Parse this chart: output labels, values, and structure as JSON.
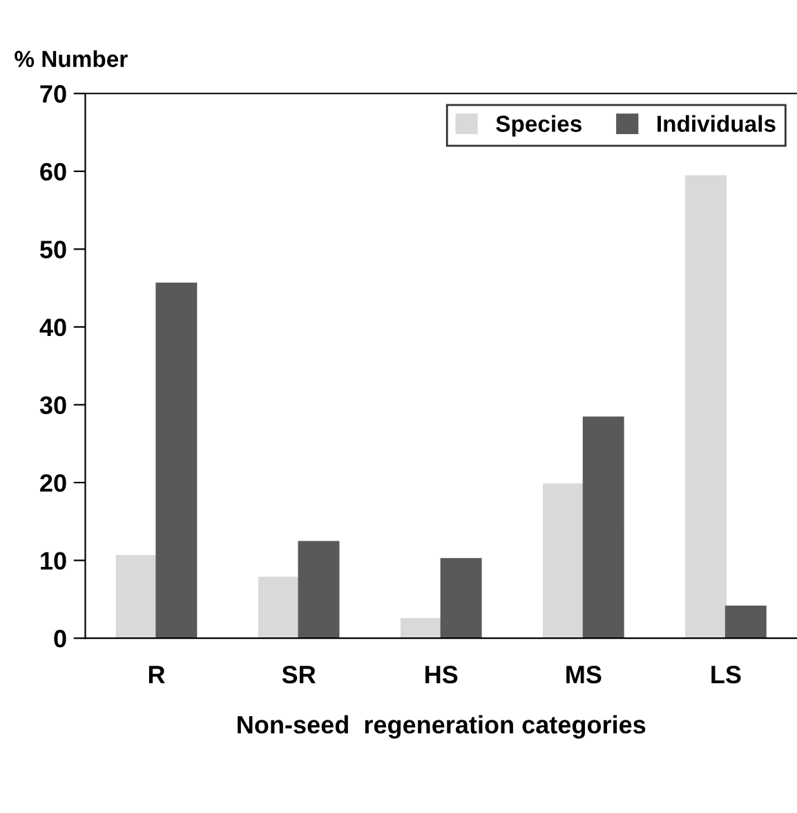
{
  "chart_data": {
    "type": "bar",
    "ylabel": "% Number",
    "xlabel": "Non-seed  regeneration categories",
    "categories": [
      "R",
      "SR",
      "HS",
      "MS",
      "LS"
    ],
    "series": [
      {
        "name": "Species",
        "color": "#d9d9d9",
        "values": [
          10.6,
          7.8,
          2.5,
          19.8,
          59.4
        ]
      },
      {
        "name": "Individuals",
        "color": "#595959",
        "values": [
          45.6,
          12.4,
          10.2,
          28.4,
          4.1
        ]
      }
    ],
    "ylim": [
      0,
      70
    ],
    "yticks": [
      0,
      10,
      20,
      30,
      40,
      50,
      60,
      70
    ],
    "grid": false,
    "legend": "top right"
  }
}
